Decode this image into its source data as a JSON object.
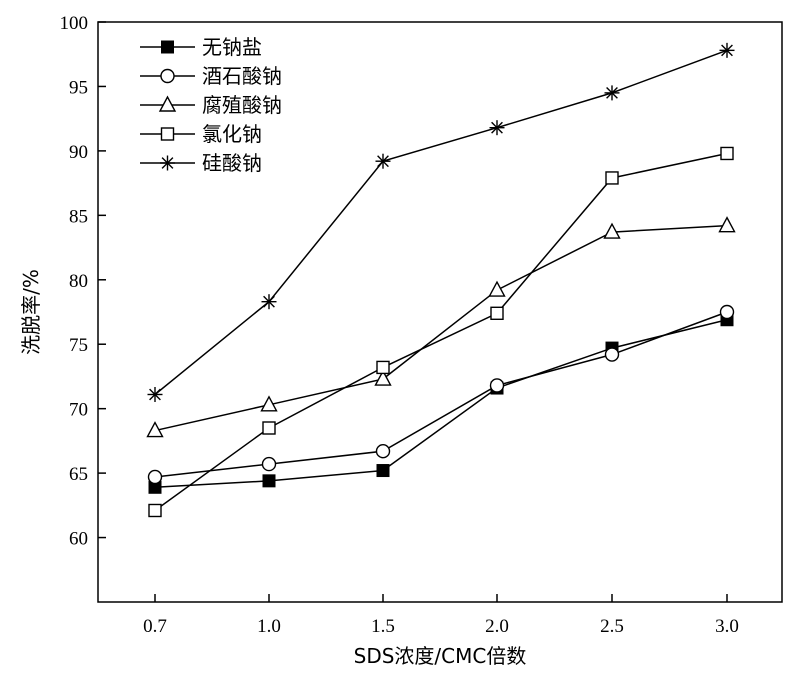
{
  "chart_data": {
    "type": "line",
    "xlabel": "SDS浓度/CMC倍数",
    "ylabel": "洗脱率/%",
    "categories": [
      "0.7",
      "1.0",
      "1.5",
      "2.0",
      "2.5",
      "3.0"
    ],
    "ylim": [
      55,
      100
    ],
    "yticks": [
      60,
      65,
      70,
      75,
      80,
      85,
      90,
      95,
      100
    ],
    "grid": false,
    "legend_position": "top-left",
    "series": [
      {
        "name": "无钠盐",
        "marker": "filled-square",
        "values": [
          63.9,
          64.4,
          65.2,
          71.6,
          74.7,
          76.9
        ]
      },
      {
        "name": "酒石酸钠",
        "marker": "open-circle",
        "values": [
          64.7,
          65.7,
          66.7,
          71.8,
          74.2,
          77.5
        ]
      },
      {
        "name": "腐殖酸钠",
        "marker": "open-triangle",
        "values": [
          68.3,
          70.3,
          72.3,
          79.2,
          83.7,
          84.2
        ]
      },
      {
        "name": "氯化钠",
        "marker": "open-square",
        "values": [
          62.1,
          68.5,
          73.2,
          77.4,
          87.9,
          89.8
        ]
      },
      {
        "name": "硅酸钠",
        "marker": "asterisk",
        "values": [
          71.1,
          78.3,
          89.2,
          91.8,
          94.5,
          97.8
        ]
      }
    ]
  }
}
